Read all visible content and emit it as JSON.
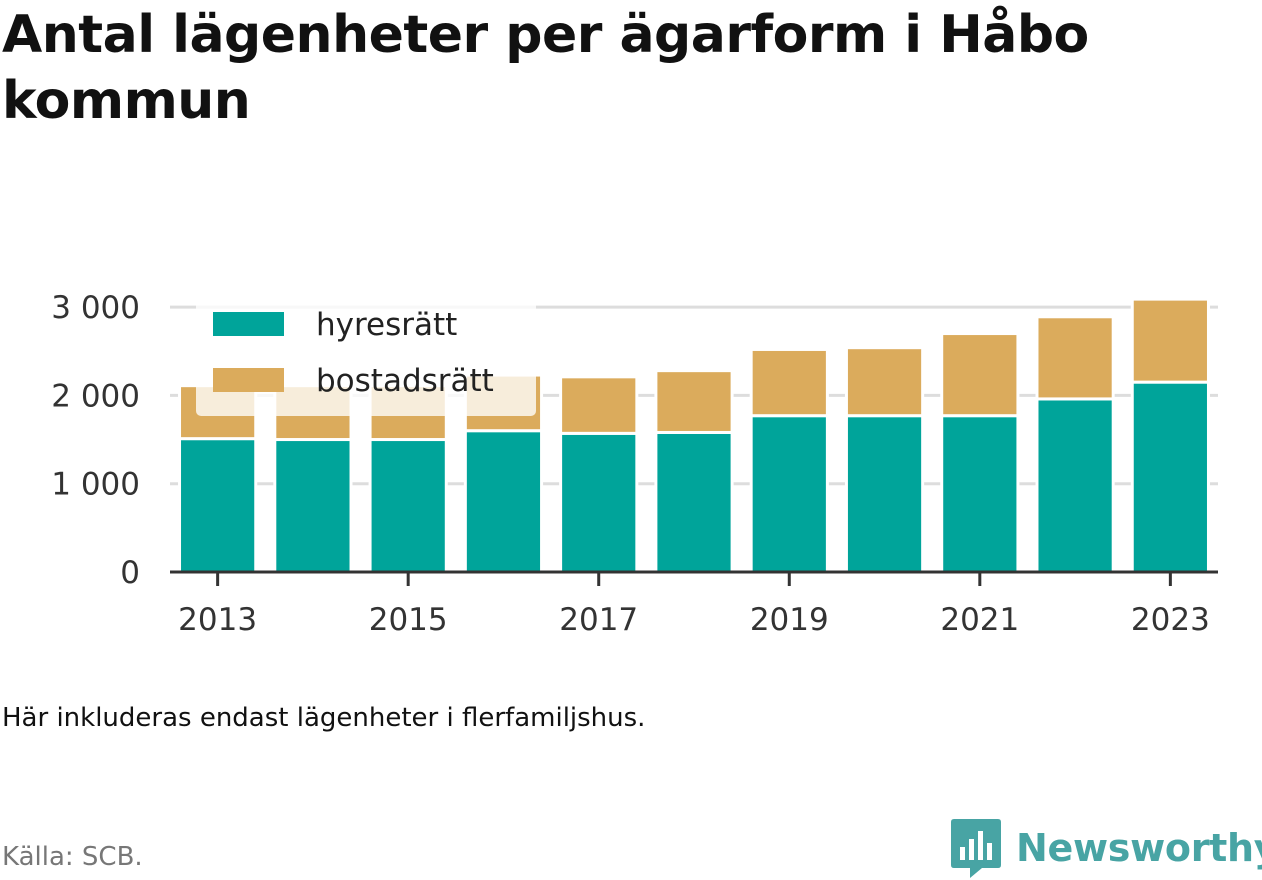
{
  "title": "Antal lägenheter per ägarform i Håbo kommun",
  "note": "Här inkluderas endast lägenheter i flerfamiljshus.",
  "source": "Källa: SCB.",
  "brand": {
    "name": "Newsworthy",
    "icon": "newsworthy-logo-icon",
    "color": "#48a4a4"
  },
  "chart_data": {
    "type": "bar",
    "stacked": true,
    "x": [
      2013,
      2014,
      2015,
      2016,
      2017,
      2018,
      2019,
      2020,
      2021,
      2022,
      2023
    ],
    "x_tick_labels": [
      "2013",
      "2015",
      "2017",
      "2019",
      "2021",
      "2023"
    ],
    "series": [
      {
        "name": "hyresrätt",
        "color": "#00a49a",
        "values": [
          1510,
          1500,
          1500,
          1600,
          1570,
          1580,
          1770,
          1770,
          1770,
          1960,
          2150
        ]
      },
      {
        "name": "bostadsrätt",
        "color": "#dbab5c",
        "values": [
          600,
          610,
          610,
          630,
          640,
          700,
          750,
          770,
          930,
          930,
          940
        ]
      }
    ],
    "y_ticks": [
      0,
      1000,
      2000,
      3000
    ],
    "y_tick_labels": [
      "0",
      "1 000",
      "2 000",
      "3 000"
    ],
    "ylim": [
      0,
      3080
    ],
    "grid": "horizontal",
    "legend_position": "top-left",
    "xlabel": "",
    "ylabel": ""
  }
}
